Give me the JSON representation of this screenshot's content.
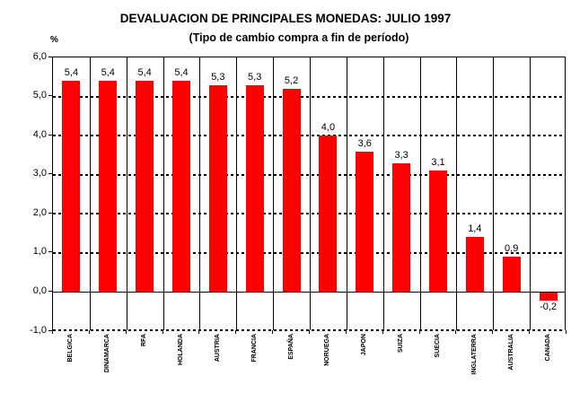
{
  "title": "DEVALUACION DE PRINCIPALES MONEDAS: JULIO 1997",
  "subtitle": "(Tipo de cambio compra a fin de período)",
  "unit_label": "%",
  "chart_data": {
    "type": "bar",
    "title": "DEVALUACION DE PRINCIPALES MONEDAS: JULIO 1997",
    "subtitle": "(Tipo de cambio compra a fin de período)",
    "ylabel": "%",
    "categories": [
      "BELGICA",
      "DINAMARCA",
      "RFA",
      "HOLANDA",
      "AUSTRIA",
      "FRANCIA",
      "ESPAÑA",
      "NORUEGA",
      "JAPON",
      "SUIZA",
      "SUECIA",
      "INGLATERRA",
      "AUSTRALIA",
      "CANADA"
    ],
    "values": [
      5.4,
      5.4,
      5.4,
      5.4,
      5.3,
      5.3,
      5.2,
      4.0,
      3.6,
      3.3,
      3.1,
      1.4,
      0.9,
      -0.2
    ],
    "value_labels": [
      "5,4",
      "5,4",
      "5,4",
      "5,4",
      "5,3",
      "5,3",
      "5,2",
      "4,0",
      "3,6",
      "3,3",
      "3,1",
      "1,4",
      "0,9",
      "-0,2"
    ],
    "ylim": [
      -1.0,
      6.0
    ],
    "ytick_values": [
      6.0,
      5.0,
      4.0,
      3.0,
      2.0,
      1.0,
      0.0,
      -1.0
    ],
    "ytick_labels": [
      "6,0",
      "5,0",
      "4,0",
      "3,0",
      "2,0",
      "1,0",
      "0,0",
      "-1,0"
    ],
    "bar_color": "#FF0000",
    "grid": "horizontal-dashed",
    "zero_line": "solid",
    "legend": "none"
  }
}
